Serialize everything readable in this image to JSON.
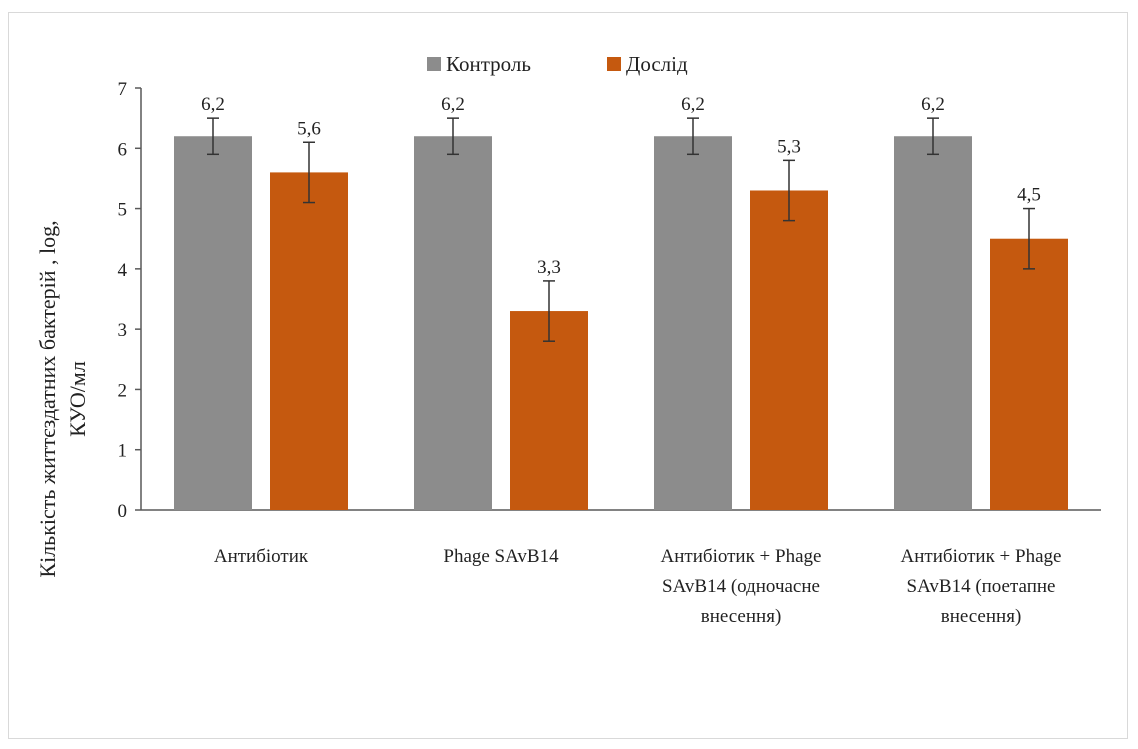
{
  "chart_data": {
    "type": "bar",
    "title": "",
    "xlabel": "",
    "ylabel_lines": [
      "Кількість життєздатних бактерій , log,",
      "КУО/мл"
    ],
    "ylim": [
      0,
      7
    ],
    "yticks": [
      0,
      1,
      2,
      3,
      4,
      5,
      6,
      7
    ],
    "grid": false,
    "legend_position": "top-center",
    "categories": [
      [
        "Антибіотик"
      ],
      [
        "Phage SAvB14"
      ],
      [
        "Антибіотик + Phage",
        "SAvB14 (одночасне",
        "внесення)"
      ],
      [
        "Антибіотик + Phage",
        "SAvB14 (поетапне",
        "внесення)"
      ]
    ],
    "series": [
      {
        "name": "Контроль",
        "color": "#8c8c8c",
        "values": [
          6.2,
          6.2,
          6.2,
          6.2
        ],
        "labels": [
          "6,2",
          "6,2",
          "6,2",
          "6,2"
        ],
        "errors": [
          0.3,
          0.3,
          0.3,
          0.3
        ]
      },
      {
        "name": "Дослід",
        "color": "#c5590f",
        "values": [
          5.6,
          3.3,
          5.3,
          4.5
        ],
        "labels": [
          "5,6",
          "3,3",
          "5,3",
          "4,5"
        ],
        "errors": [
          0.5,
          0.5,
          0.5,
          0.5
        ]
      }
    ]
  }
}
